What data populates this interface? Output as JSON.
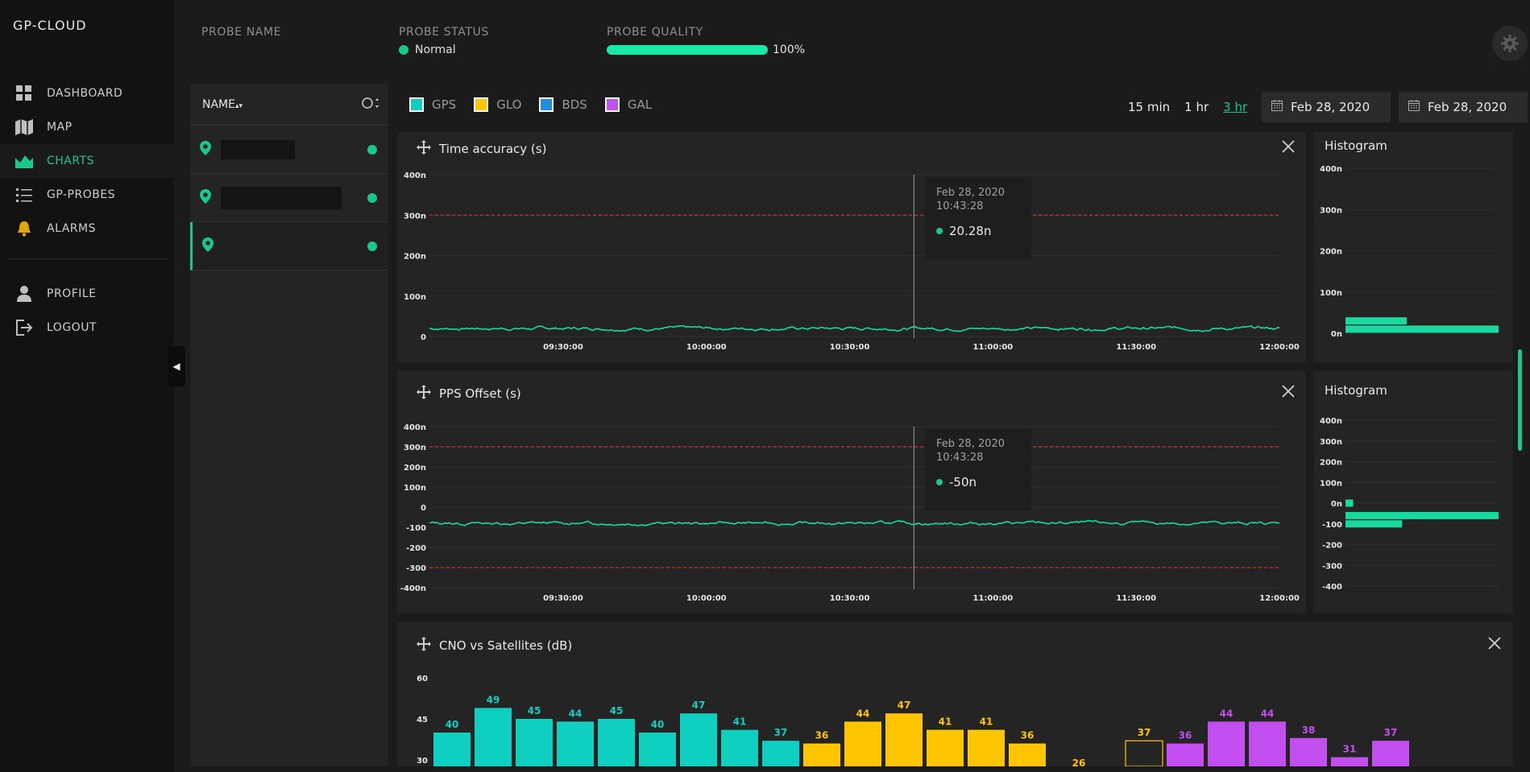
{
  "brand": "GP-CLOUD",
  "nav": [
    {
      "label": "DASHBOARD",
      "icon": "dashboard-icon"
    },
    {
      "label": "MAP",
      "icon": "map-icon"
    },
    {
      "label": "CHARTS",
      "icon": "charts-icon",
      "active": true
    },
    {
      "label": "GP-PROBES",
      "icon": "list-icon"
    },
    {
      "label": "ALARMS",
      "icon": "bell-icon"
    }
  ],
  "nav_secondary": [
    {
      "label": "PROFILE",
      "icon": "user-icon"
    },
    {
      "label": "LOGOUT",
      "icon": "logout-icon"
    }
  ],
  "header": {
    "probe_name_label": "PROBE NAME",
    "probe_status_label": "PROBE STATUS",
    "probe_status_value": "Normal",
    "probe_quality_label": "PROBE QUALITY",
    "probe_quality_value": "100%",
    "probe_quality_fraction": 1.0
  },
  "probe_list": {
    "column_label": "NAME",
    "sort_icon": "sort-arrows-icon",
    "status_filter_icon": "status-circle-icon",
    "rows": [
      {
        "status": "online"
      },
      {
        "status": "online"
      },
      {
        "status": "online",
        "selected": true
      }
    ]
  },
  "legend": [
    {
      "label": "GPS",
      "color": "#0ecfc0"
    },
    {
      "label": "GLO",
      "color": "#ffc600"
    },
    {
      "label": "BDS",
      "color": "#1e8ee6"
    },
    {
      "label": "GAL",
      "color": "#c44ff0"
    }
  ],
  "time_ranges": [
    {
      "label": "15 min"
    },
    {
      "label": "1 hr"
    },
    {
      "label": "3 hr",
      "active": true
    }
  ],
  "date_from": "Feb 28, 2020",
  "date_to": "Feb 28, 2020",
  "colors": {
    "accent": "#19c98a",
    "series_line": "#19d9a0",
    "threshold": "#e02828"
  },
  "charts": {
    "time_accuracy": {
      "title": "Time accuracy (s)",
      "tooltip": {
        "date": "Feb 28, 2020",
        "time": "10:43:28",
        "value": "20.28n"
      },
      "hist_title": "Histogram"
    },
    "pps_offset": {
      "title": "PPS Offset (s)",
      "tooltip": {
        "date": "Feb 28, 2020",
        "time": "10:43:28",
        "value": "-50n"
      },
      "hist_title": "Histogram"
    },
    "cno": {
      "title": "CNO vs Satellites (dB)"
    }
  },
  "chart_data": [
    {
      "type": "line",
      "title": "Time accuracy (s)",
      "x_ticks": [
        "09:30:00",
        "10:00:00",
        "10:30:00",
        "11:00:00",
        "11:30:00",
        "12:00:00"
      ],
      "y_ticks": [
        "400n",
        "300n",
        "200n",
        "100n",
        "0"
      ],
      "ylim": [
        0,
        400
      ],
      "threshold": 300,
      "x_range": [
        "09:02:00",
        "12:00:00"
      ],
      "cursor_x": "10:43:28",
      "series": [
        {
          "approx_mean": 20,
          "approx_jitter": 10
        }
      ],
      "grid": true
    },
    {
      "type": "bar",
      "title": "Histogram",
      "orientation": "horizontal",
      "y_ticks": [
        "400n",
        "300n",
        "200n",
        "100n",
        "0n"
      ],
      "bins": [
        {
          "y": 30,
          "count": 0.4
        },
        {
          "y": 10,
          "count": 1.0
        }
      ]
    },
    {
      "type": "line",
      "title": "PPS Offset (s)",
      "x_ticks": [
        "09:30:00",
        "10:00:00",
        "10:30:00",
        "11:00:00",
        "11:30:00",
        "12:00:00"
      ],
      "y_ticks": [
        "400n",
        "300n",
        "200n",
        "100n",
        "0",
        "-100",
        "-200",
        "-300",
        "-400n"
      ],
      "ylim": [
        -400,
        400
      ],
      "thresholds": [
        300,
        -300
      ],
      "x_range": [
        "09:02:00",
        "12:00:00"
      ],
      "cursor_x": "10:43:28",
      "series": [
        {
          "approx_mean": -80,
          "approx_jitter": 20
        }
      ],
      "grid": true
    },
    {
      "type": "bar",
      "title": "Histogram",
      "orientation": "horizontal",
      "y_ticks": [
        "400n",
        "300n",
        "200n",
        "100n",
        "0n",
        "-100",
        "-200",
        "-300",
        "-400"
      ],
      "bins": [
        {
          "y": 0,
          "count": 0.05
        },
        {
          "y": -60,
          "count": 1.0
        },
        {
          "y": -100,
          "count": 0.37
        }
      ]
    },
    {
      "type": "bar",
      "title": "CNO vs Satellites (dB)",
      "y_ticks": [
        "60",
        "45",
        "30"
      ],
      "ylim": [
        30,
        60
      ],
      "series": [
        {
          "name": "GPS",
          "values": [
            40,
            49,
            45,
            44,
            45,
            40,
            47,
            41,
            37
          ]
        },
        {
          "name": "GLO",
          "values": [
            36,
            44,
            47,
            41,
            41,
            36
          ]
        },
        {
          "name": "BDS",
          "values": [
            26
          ]
        },
        {
          "name": "GAL",
          "values": [
            37,
            36,
            44,
            44,
            38,
            31,
            37
          ],
          "outlined_first": true
        }
      ]
    }
  ]
}
